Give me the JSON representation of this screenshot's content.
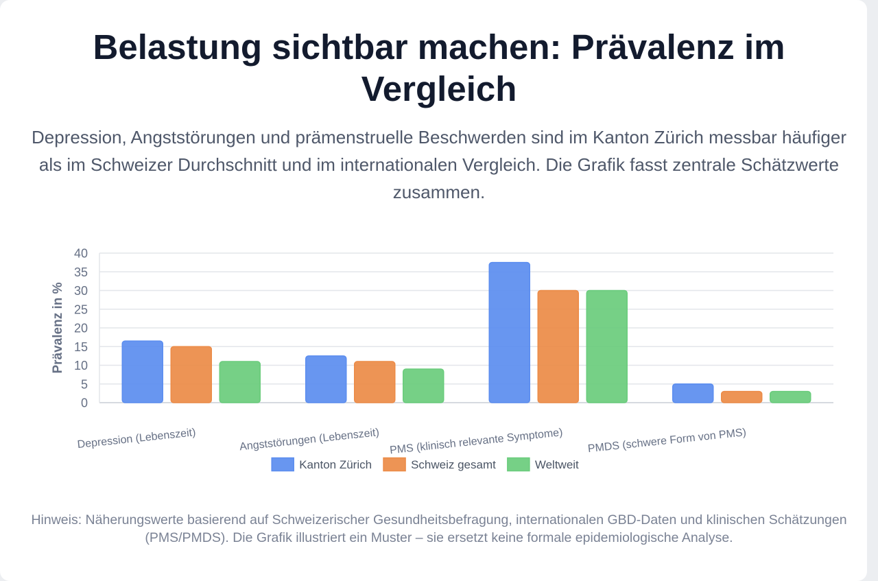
{
  "title": "Belastung sichtbar machen: Prävalenz im Vergleich",
  "subtitle": "Depression, Angststörungen und prämenstruelle Beschwerden sind im Kanton Zürich messbar häufiger als im Schweizer Durchschnitt und im internationalen Vergleich. Die Grafik fasst zentrale Schätzwerte zusammen.",
  "note": "Hinweis: Näherungswerte basierend auf Schweizerischer Gesundheitsbefragung, internationalen GBD-Daten und klinischen Schätzungen (PMS/PMDS). Die Grafik illustriert ein Muster – sie ersetzt keine formale epidemiologische Analyse.",
  "chart_data": {
    "type": "bar",
    "categories": [
      "Depression (Lebenszeit)",
      "Angststörungen (Lebenszeit)",
      "PMS (klinisch relevante Symptome)",
      "PMDS (schwere Form von PMS)"
    ],
    "series": [
      {
        "name": "Kanton Zürich",
        "color": "#5b8def",
        "values": [
          16.5,
          12.5,
          37.5,
          5
        ]
      },
      {
        "name": "Schweiz gesamt",
        "color": "#ec8b47",
        "values": [
          15,
          11,
          30,
          3
        ]
      },
      {
        "name": "Weltweit",
        "color": "#6acc7c",
        "values": [
          11,
          9,
          30,
          3
        ]
      }
    ],
    "ylabel": "Prävalenz in %",
    "xlabel": "",
    "ylim": [
      0,
      40
    ],
    "yticks": [
      0,
      5,
      10,
      15,
      20,
      25,
      30,
      35,
      40
    ],
    "grid": true,
    "legend_position": "bottom"
  }
}
